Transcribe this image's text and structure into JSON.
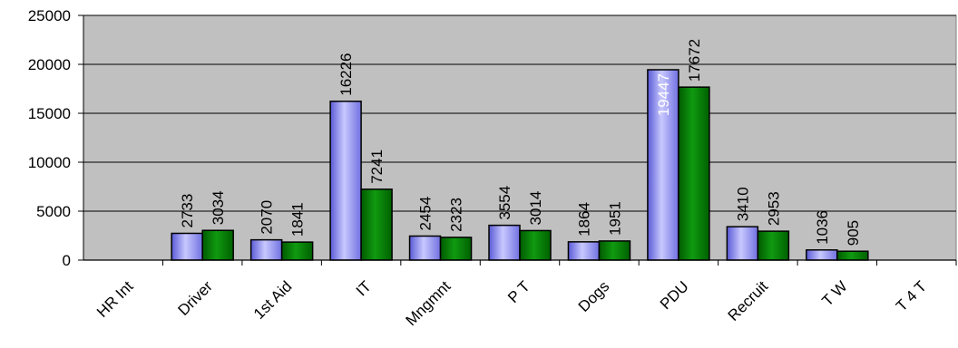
{
  "chart_data": {
    "type": "bar",
    "categories": [
      "HR  Int",
      "Driver",
      "1st Aid",
      "IT",
      "Mngmnt",
      "P T",
      "Dogs",
      "PDU",
      "Recruit",
      "T W",
      "T 4 T"
    ],
    "series": [
      {
        "values": [
          0,
          2733,
          2070,
          16226,
          2454,
          3554,
          1864,
          19447,
          3410,
          1036,
          0
        ],
        "color": "#9999ff"
      },
      {
        "values": [
          0,
          3034,
          1841,
          7241,
          2323,
          3014,
          1951,
          17672,
          2953,
          905,
          0
        ],
        "color": "#008000"
      }
    ],
    "ylim": [
      0,
      25000
    ],
    "yticks": [
      0,
      5000,
      10000,
      15000,
      20000,
      25000
    ],
    "grid": true,
    "plot_background": "#c0c0c0",
    "legend": "none"
  }
}
